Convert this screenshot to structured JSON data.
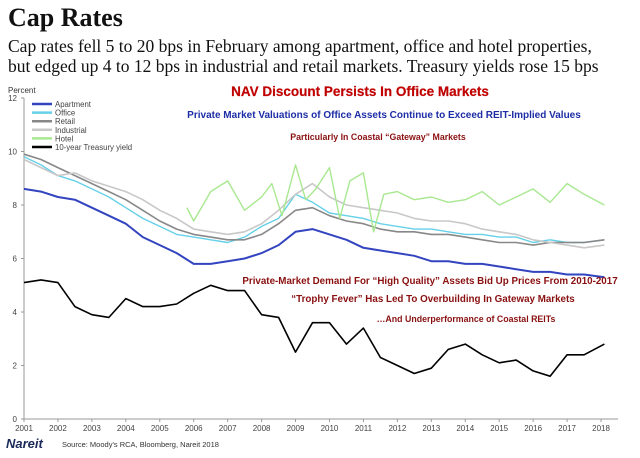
{
  "header": {
    "title": "Cap Rates",
    "subtitle_line1": "Cap rates fell 5 to 20 bps in February among apartment, office and hotel properties,",
    "subtitle_line2": "but edged up 4 to 12 bps in industrial and retail markets. Treasury yields rose 15 bps"
  },
  "footer": {
    "logo": "Nareit",
    "source": "Source: Moody's RCA, Bloomberg, Nareit 2018"
  },
  "annotations": {
    "headline": "NAV Discount Persists In Office Markets",
    "line1": "Private Market Valuations of Office Assets Continue to Exceed REIT-Implied Values",
    "line2": "Particularly In Coastal “Gateway” Markets",
    "line3": "Private-Market Demand For “High Quality” Assets Bid Up Prices From 2010-2017",
    "line4": "“Trophy Fever” Has Led To Overbuilding In Gateway Markets",
    "line5": "…And Underperformance of Coastal REITs"
  },
  "chart_data": {
    "type": "line",
    "ylabel": "Percent",
    "ylim": [
      0,
      12
    ],
    "yticks": [
      0,
      2,
      4,
      6,
      8,
      10,
      12
    ],
    "xlim": [
      2001,
      2018.5
    ],
    "xticks": [
      "2001",
      "2002",
      "2003",
      "2004",
      "2005",
      "2006",
      "2007",
      "2008",
      "2009",
      "2010",
      "2011",
      "2012",
      "2013",
      "2014",
      "2015",
      "2016",
      "2017",
      "2018"
    ],
    "grid": false,
    "legend_position": "top-left",
    "series": [
      {
        "name": "Apartment",
        "color": "#3344c0",
        "x": [
          2001,
          2001.5,
          2002,
          2002.5,
          2003,
          2003.5,
          2004,
          2004.5,
          2005,
          2005.5,
          2006,
          2006.5,
          2007,
          2007.5,
          2008,
          2008.5,
          2009,
          2009.5,
          2010,
          2010.5,
          2011,
          2011.5,
          2012,
          2012.5,
          2013,
          2013.5,
          2014,
          2014.5,
          2015,
          2015.5,
          2016,
          2016.5,
          2017,
          2017.5,
          2018.1
        ],
        "y": [
          8.6,
          8.5,
          8.3,
          8.2,
          7.9,
          7.6,
          7.3,
          6.8,
          6.5,
          6.2,
          5.8,
          5.8,
          5.9,
          6.0,
          6.2,
          6.5,
          7.0,
          7.1,
          6.9,
          6.7,
          6.4,
          6.3,
          6.2,
          6.1,
          5.9,
          5.9,
          5.8,
          5.8,
          5.7,
          5.6,
          5.5,
          5.5,
          5.4,
          5.4,
          5.3
        ]
      },
      {
        "name": "Office",
        "color": "#66d0e8",
        "x": [
          2001,
          2001.5,
          2002,
          2002.5,
          2003,
          2003.5,
          2004,
          2004.5,
          2005,
          2005.5,
          2006,
          2006.5,
          2007,
          2007.5,
          2008,
          2008.5,
          2009,
          2009.5,
          2010,
          2010.5,
          2011,
          2011.5,
          2012,
          2012.5,
          2013,
          2013.5,
          2014,
          2014.5,
          2015,
          2015.5,
          2016,
          2016.5,
          2017,
          2017.5,
          2018.1
        ],
        "y": [
          9.8,
          9.5,
          9.1,
          8.9,
          8.6,
          8.3,
          7.9,
          7.5,
          7.2,
          6.9,
          6.8,
          6.7,
          6.6,
          6.8,
          7.2,
          7.5,
          8.4,
          8.1,
          7.7,
          7.6,
          7.5,
          7.3,
          7.2,
          7.1,
          7.1,
          7.0,
          6.9,
          6.9,
          6.8,
          6.8,
          6.6,
          6.7,
          6.6,
          6.6,
          6.7
        ]
      },
      {
        "name": "Retail",
        "color": "#888888",
        "x": [
          2001,
          2001.5,
          2002,
          2002.5,
          2003,
          2003.5,
          2004,
          2004.5,
          2005,
          2005.5,
          2006,
          2006.5,
          2007,
          2007.5,
          2008,
          2008.5,
          2009,
          2009.5,
          2010,
          2010.5,
          2011,
          2011.5,
          2012,
          2012.5,
          2013,
          2013.5,
          2014,
          2014.5,
          2015,
          2015.5,
          2016,
          2016.5,
          2017,
          2017.5,
          2018.1
        ],
        "y": [
          9.9,
          9.7,
          9.4,
          9.1,
          8.8,
          8.5,
          8.2,
          7.8,
          7.4,
          7.1,
          6.9,
          6.8,
          6.7,
          6.7,
          6.9,
          7.3,
          7.8,
          7.9,
          7.6,
          7.4,
          7.3,
          7.1,
          7.0,
          7.0,
          6.9,
          6.9,
          6.8,
          6.7,
          6.6,
          6.6,
          6.5,
          6.6,
          6.6,
          6.6,
          6.7
        ]
      },
      {
        "name": "Industrial",
        "color": "#c8c8c8",
        "x": [
          2001,
          2001.5,
          2002,
          2002.5,
          2003,
          2003.5,
          2004,
          2004.5,
          2005,
          2005.5,
          2006,
          2006.5,
          2007,
          2007.5,
          2008,
          2008.5,
          2009,
          2009.5,
          2010,
          2010.5,
          2011,
          2011.5,
          2012,
          2012.5,
          2013,
          2013.5,
          2014,
          2014.5,
          2015,
          2015.5,
          2016,
          2016.5,
          2017,
          2017.5,
          2018.1
        ],
        "y": [
          9.7,
          9.4,
          9.1,
          9.2,
          8.9,
          8.7,
          8.5,
          8.2,
          7.8,
          7.5,
          7.1,
          7.0,
          6.9,
          7.0,
          7.3,
          7.8,
          8.4,
          8.8,
          8.3,
          8.0,
          7.9,
          7.8,
          7.7,
          7.5,
          7.4,
          7.4,
          7.3,
          7.1,
          7.0,
          6.9,
          6.7,
          6.6,
          6.5,
          6.4,
          6.5
        ]
      },
      {
        "name": "Hotel",
        "color": "#a8e890",
        "x": [
          2005.8,
          2006,
          2006.5,
          2007,
          2007.5,
          2008,
          2008.3,
          2008.6,
          2009,
          2009.3,
          2009.6,
          2010,
          2010.3,
          2010.6,
          2011,
          2011.3,
          2011.6,
          2012,
          2012.5,
          2013,
          2013.5,
          2014,
          2014.5,
          2015,
          2015.5,
          2016,
          2016.5,
          2017,
          2017.5,
          2018.1
        ],
        "y": [
          7.9,
          7.4,
          8.5,
          8.9,
          7.8,
          8.3,
          8.8,
          7.6,
          9.5,
          8.2,
          8.6,
          9.4,
          7.5,
          8.9,
          9.2,
          7.0,
          8.4,
          8.5,
          8.2,
          8.3,
          8.1,
          8.2,
          8.5,
          8.0,
          8.3,
          8.6,
          8.1,
          8.8,
          8.4,
          8.0
        ]
      },
      {
        "name": "10-year Treasury yield",
        "color": "#000000",
        "x": [
          2001,
          2001.5,
          2002,
          2002.5,
          2003,
          2003.5,
          2004,
          2004.5,
          2005,
          2005.5,
          2006,
          2006.5,
          2007,
          2007.5,
          2008,
          2008.5,
          2009,
          2009.5,
          2010,
          2010.5,
          2011,
          2011.5,
          2012,
          2012.5,
          2013,
          2013.5,
          2014,
          2014.5,
          2015,
          2015.5,
          2016,
          2016.5,
          2017,
          2017.5,
          2018.1
        ],
        "y": [
          5.1,
          5.2,
          5.1,
          4.2,
          3.9,
          3.8,
          4.5,
          4.2,
          4.2,
          4.3,
          4.7,
          5.0,
          4.8,
          4.8,
          3.9,
          3.8,
          2.5,
          3.6,
          3.6,
          2.8,
          3.4,
          2.3,
          2.0,
          1.7,
          1.9,
          2.6,
          2.8,
          2.4,
          2.1,
          2.2,
          1.8,
          1.6,
          2.4,
          2.4,
          2.8
        ]
      }
    ]
  }
}
